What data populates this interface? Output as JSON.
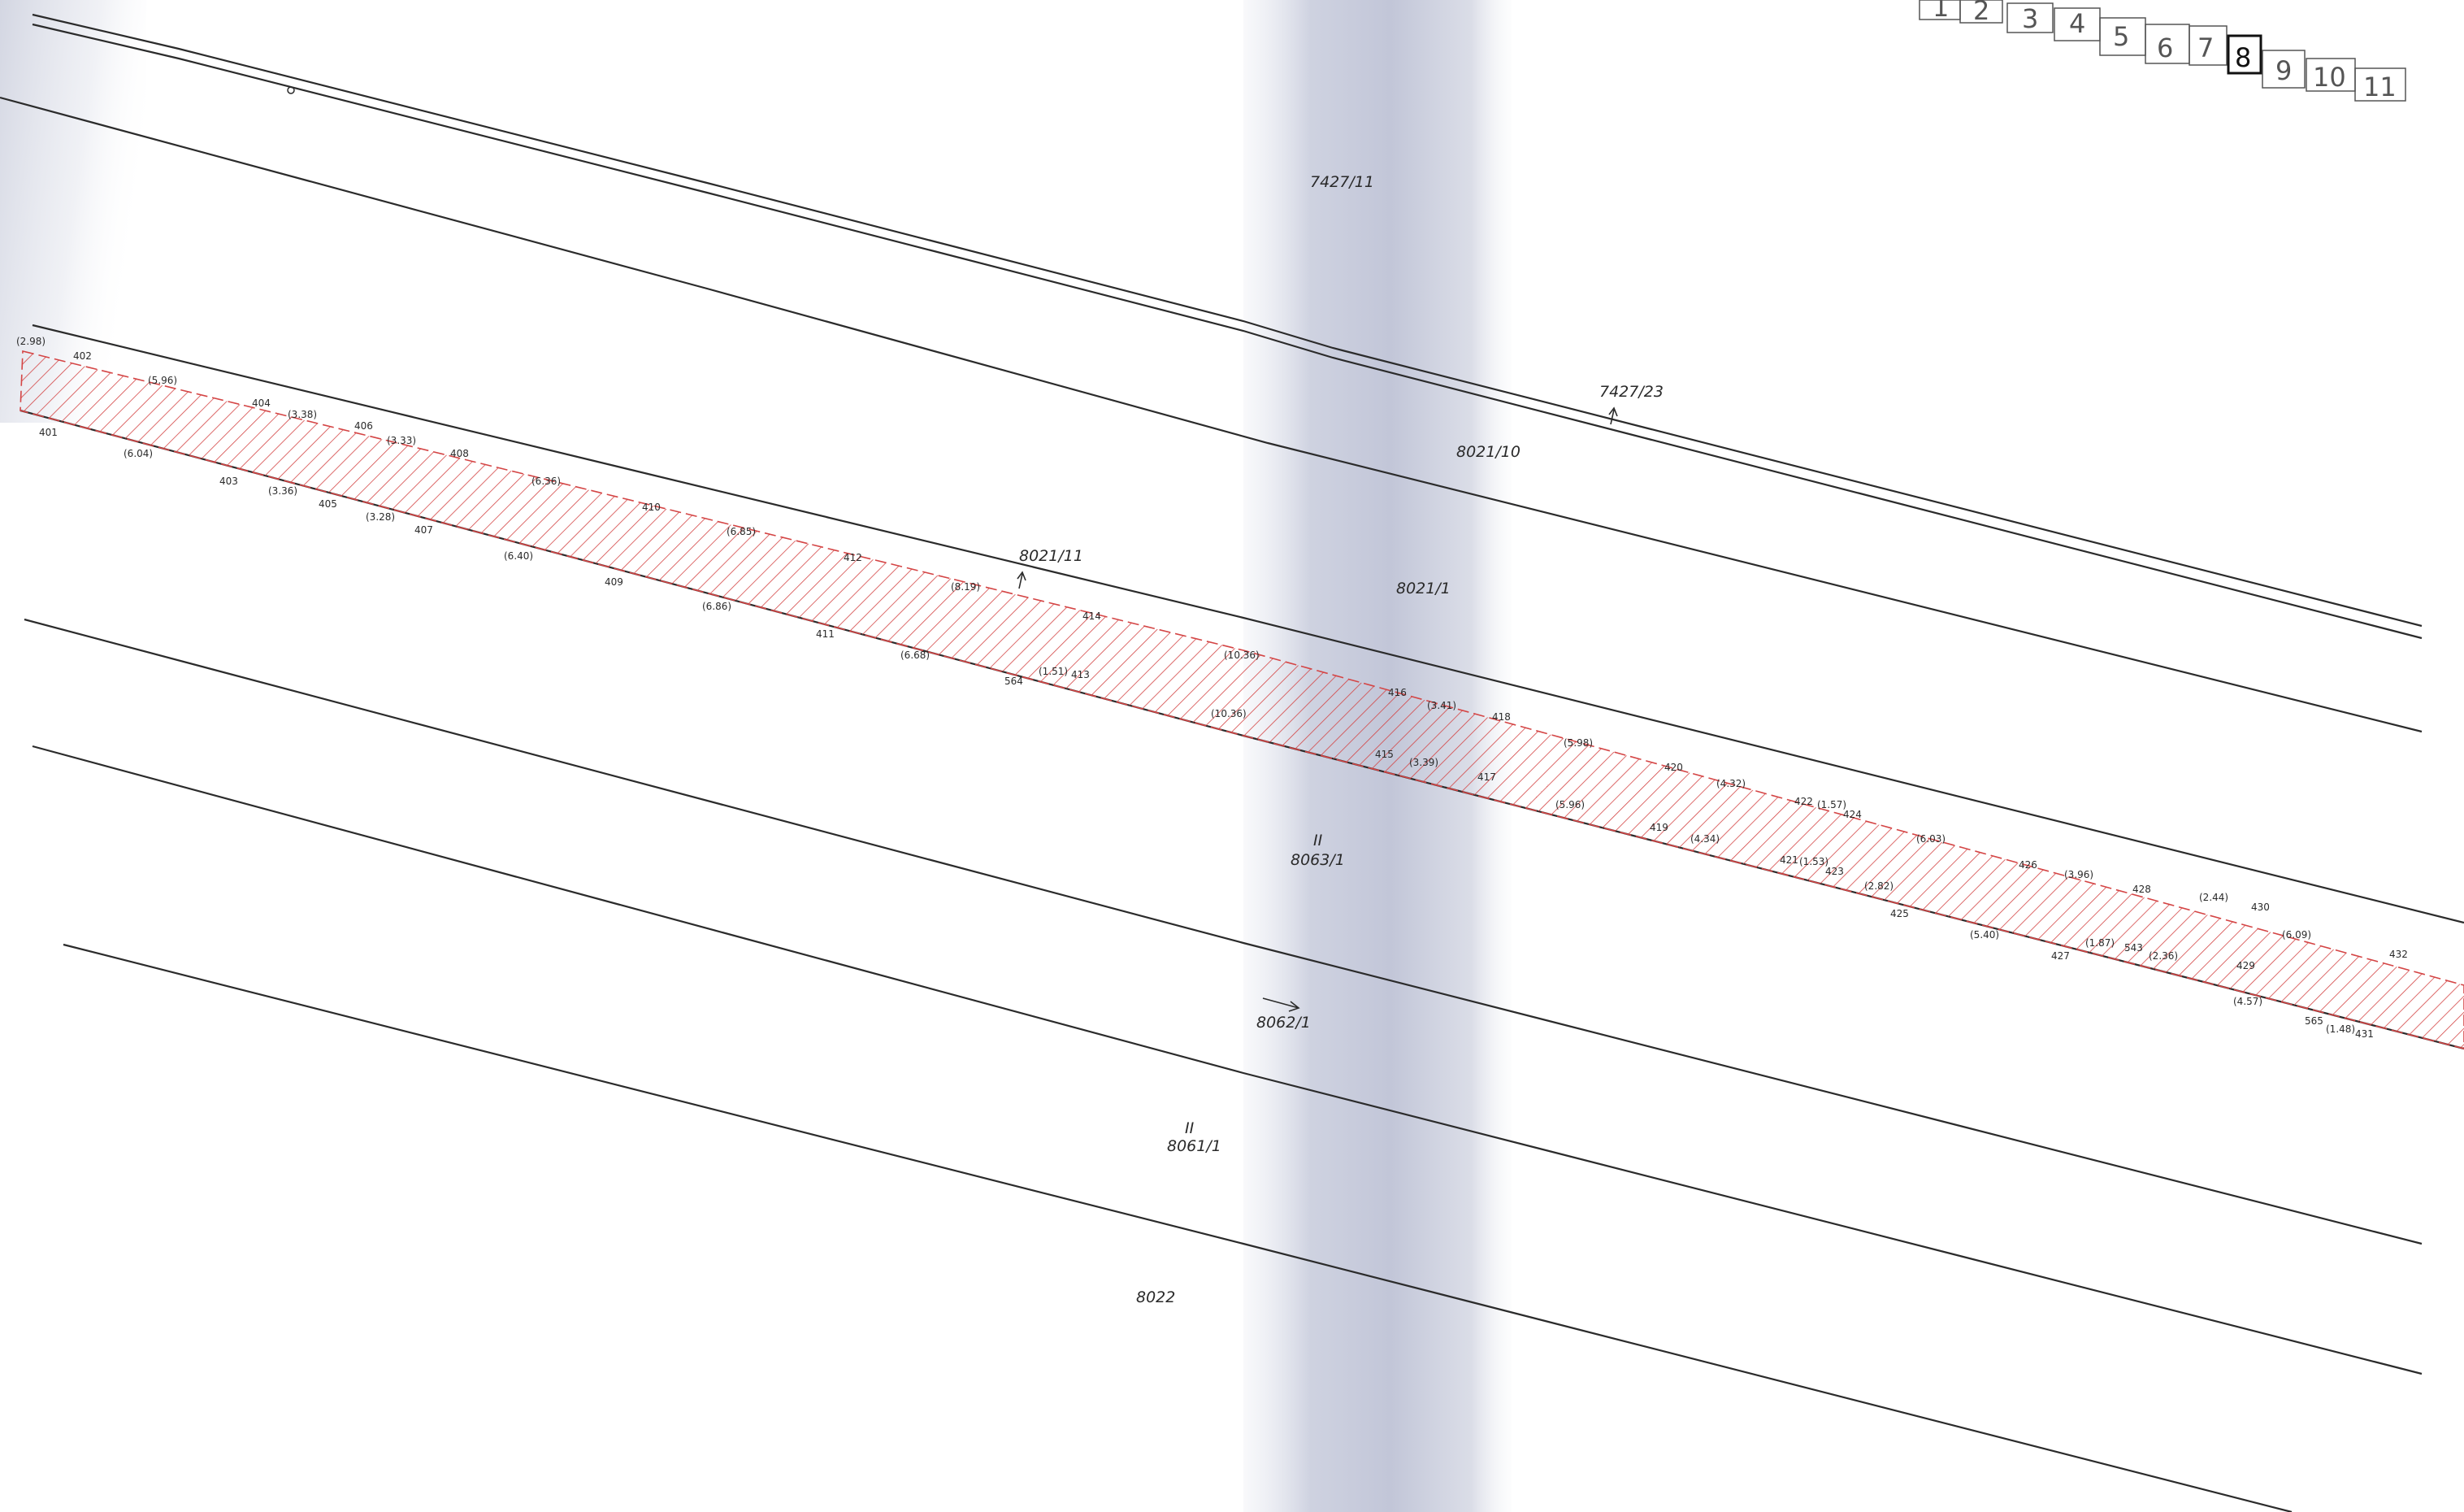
{
  "colors": {
    "line": "#2b2b2b",
    "hatch": "#d44545",
    "fold_shadow": "#c4c8da",
    "corner_shadow": "#d8dbe6"
  },
  "sheet_index": {
    "sheets": [
      "1",
      "2",
      "3",
      "4",
      "5",
      "6",
      "7",
      "8",
      "9",
      "10",
      "11"
    ],
    "current": "8"
  },
  "parcels": {
    "p7427_11": "7427/11",
    "p7427_23": "7427/23",
    "p8021_10": "8021/10",
    "p8021_11": "8021/11",
    "p8021_1": "8021/1",
    "p8063_1": "8063/1",
    "p8062_1": "8062/1",
    "p8061_1": "8061/1",
    "p8022": "8022",
    "double_tick": "II"
  },
  "points_upper": [
    "402",
    "404",
    "406",
    "408",
    "410",
    "412",
    "414",
    "416",
    "418",
    "420",
    "422",
    "424",
    "426",
    "428",
    "430",
    "432"
  ],
  "points_lower": [
    "401",
    "403",
    "405",
    "407",
    "409",
    "411",
    "564",
    "413",
    "415",
    "417",
    "419",
    "421",
    "423",
    "425",
    "427",
    "543",
    "429",
    "565",
    "431"
  ],
  "dimensions_upper": [
    "(2.98)",
    "(5.96)",
    "(3.38)",
    "(3.33)",
    "(6.36)",
    "(6.85)",
    "(8.19)",
    "(10.36)",
    "(3.41)",
    "(5.98)",
    "(4.32)",
    "(1.57)",
    "(6.03)",
    "(3.96)",
    "(2.44)",
    "(6.09)"
  ],
  "dimensions_lower": [
    "(6.04)",
    "(3.36)",
    "(3.28)",
    "(6.40)",
    "(6.86)",
    "(6.68)",
    "(1.51)",
    "(10.36)",
    "(3.39)",
    "(5.96)",
    "(4.34)",
    "(1.53)",
    "(2.82)",
    "(5.40)",
    "(1.87)",
    "(2.36)",
    "(4.57)",
    "(1.48)"
  ]
}
